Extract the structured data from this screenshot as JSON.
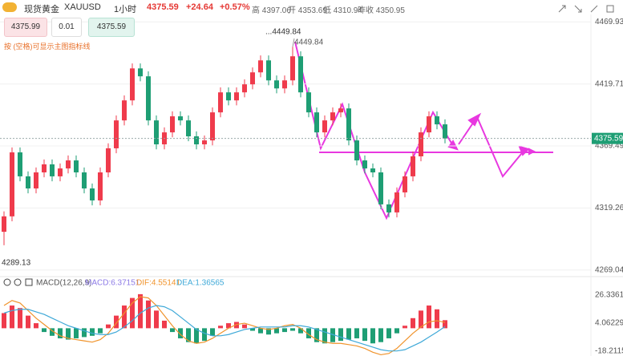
{
  "header": {
    "name": "现货黄金",
    "symbol": "XAUUSD",
    "period": "1小时",
    "price": "4375.59",
    "change": "+24.64",
    "change_pct": "+0.57%",
    "high": "高 4397.06",
    "open": "开 4353.69",
    "low": "低 4310.94",
    "prev_close": "昨收 4350.95"
  },
  "toolbar": {
    "sell": "4375.99",
    "lot": "0.01",
    "buy": "4375.59",
    "hint": "按 (空格)可显示主图指标线"
  },
  "chart_data": [
    {
      "type": "candlestick",
      "categories": [
        null,
        null,
        null,
        null,
        null,
        null,
        null,
        null,
        null,
        null,
        null,
        null,
        null,
        null,
        null,
        null,
        null,
        null,
        null,
        null,
        null,
        null,
        null,
        null,
        null,
        null,
        null,
        null,
        null,
        null,
        null,
        null,
        null,
        null,
        null,
        null,
        null,
        null,
        null,
        null,
        null,
        null,
        null,
        null,
        null,
        null,
        null,
        null,
        null,
        null,
        null,
        null,
        null,
        null,
        null,
        null
      ],
      "open": [
        4300.0,
        4312.5,
        4364.3,
        4344.9,
        4335.1,
        4348.1,
        4354.6,
        4344.9,
        4351.3,
        4357.8,
        4348.1,
        4335.1,
        4325.4,
        4348.1,
        4367.6,
        4390.2,
        4406.4,
        4432.3,
        4425.9,
        4390.2,
        4370.8,
        4380.5,
        4393.5,
        4390.2,
        4377.3,
        4370.8,
        4374.0,
        4396.7,
        4412.9,
        4406.4,
        4412.9,
        4419.4,
        4429.1,
        4438.8,
        4422.6,
        4416.1,
        4422.6,
        4442.1,
        4412.9,
        4396.7,
        4380.5,
        4390.2,
        4396.7,
        4399.9,
        4374.0,
        4357.8,
        4351.3,
        4348.1,
        4322.2,
        4315.7,
        4331.9,
        4344.9,
        4361.1,
        4380.5,
        4393.5,
        4387.0
      ],
      "high": [
        4316.5,
        4368.3,
        4368.3,
        4348.9,
        4352.1,
        4358.6,
        4358.6,
        4355.3,
        4361.8,
        4361.8,
        4352.1,
        4339.1,
        4352.1,
        4371.6,
        4394.2,
        4410.4,
        4436.3,
        4436.3,
        4429.9,
        4394.2,
        4384.5,
        4397.5,
        4397.5,
        4394.2,
        4381.3,
        4378.0,
        4400.7,
        4416.9,
        4416.9,
        4416.9,
        4423.4,
        4433.1,
        4442.8,
        4442.8,
        4426.6,
        4426.6,
        4449.84,
        4446.1,
        4416.9,
        4400.7,
        4394.2,
        4400.7,
        4403.9,
        4403.9,
        4378.0,
        4361.8,
        4355.3,
        4352.1,
        4326.2,
        4335.9,
        4348.9,
        4365.1,
        4384.5,
        4397.5,
        4397.5,
        4391.0
      ],
      "low": [
        4289.13,
        4308.5,
        4340.9,
        4331.1,
        4331.1,
        4344.1,
        4340.9,
        4340.9,
        4347.3,
        4344.1,
        4331.1,
        4321.4,
        4321.4,
        4344.1,
        4363.6,
        4386.2,
        4402.4,
        4421.9,
        4386.2,
        4366.8,
        4366.8,
        4376.5,
        4386.2,
        4373.3,
        4366.8,
        4366.8,
        4370.0,
        4392.7,
        4402.4,
        4402.4,
        4408.9,
        4415.4,
        4425.1,
        4418.6,
        4412.1,
        4412.1,
        4418.6,
        4408.9,
        4392.7,
        4376.5,
        4376.5,
        4386.2,
        4392.7,
        4370.0,
        4353.8,
        4347.3,
        4344.1,
        4318.2,
        4311.7,
        4311.7,
        4327.9,
        4340.9,
        4357.1,
        4376.5,
        4383.0,
        4371.6
      ],
      "close": [
        4312.5,
        4364.3,
        4344.9,
        4335.1,
        4348.1,
        4354.6,
        4344.9,
        4351.3,
        4357.8,
        4348.1,
        4335.1,
        4325.4,
        4348.1,
        4367.6,
        4390.2,
        4406.4,
        4432.3,
        4425.9,
        4390.2,
        4370.8,
        4380.5,
        4393.5,
        4390.2,
        4377.3,
        4370.8,
        4374.0,
        4396.7,
        4412.9,
        4406.4,
        4412.9,
        4419.4,
        4429.1,
        4438.8,
        4422.6,
        4416.1,
        4422.6,
        4442.1,
        4412.9,
        4396.7,
        4380.5,
        4390.2,
        4396.7,
        4399.9,
        4374.0,
        4357.8,
        4351.3,
        4348.1,
        4322.2,
        4315.7,
        4331.9,
        4344.9,
        4361.1,
        4380.5,
        4393.5,
        4387.0,
        4375.59
      ],
      "up_color": "#ef3b4c",
      "down_color": "#1e9e74",
      "ylim": [
        4265,
        4476
      ],
      "yticks": [
        4469.93,
        4419.71,
        4369.49,
        4319.26,
        4269.04
      ],
      "last_price": 4375.59,
      "last_price_color": "#1e9e74",
      "max_label": "4449.84",
      "max_label_top": "...4449.84",
      "min_label": "4289.13",
      "grid": true
    },
    {
      "type": "macd",
      "legend": [
        {
          "text": "MACD(12,26,9)",
          "color": "#555555"
        },
        {
          "text": "MACD:6.37151",
          "color": "#8c7ae6"
        },
        {
          "text": "DIF:4.55141",
          "color": "#f0932b"
        },
        {
          "text": "DEA:1.36565",
          "color": "#3fa9d8"
        }
      ],
      "series": [
        {
          "values": [
            12,
            18,
            16,
            10,
            4,
            -3,
            -6,
            -8,
            -9,
            -8,
            -7,
            -6,
            -4,
            3,
            10,
            18,
            24,
            27,
            22,
            14,
            6,
            -3,
            -8,
            -11,
            -12,
            -10,
            -6,
            2,
            4,
            5,
            3,
            -2,
            -4,
            -5,
            -4,
            -3,
            -2,
            -4,
            -8,
            -11,
            -12,
            -11,
            -10,
            -9,
            -8,
            -10,
            -12,
            -11,
            -8,
            -4,
            2,
            8,
            14,
            18,
            15,
            6.37151
          ],
          "up_color": "#ef3b4c",
          "down_color": "#1e9e74"
        },
        {
          "values": [
            18,
            22,
            20,
            14,
            8,
            3,
            -2,
            -6,
            -8,
            -9,
            -10,
            -11,
            -9,
            -4,
            4,
            12,
            20,
            25,
            24,
            18,
            10,
            2,
            -5,
            -10,
            -12,
            -11,
            -8,
            -4,
            0,
            3,
            4,
            2,
            0,
            -1,
            0,
            2,
            3,
            0,
            -5,
            -9,
            -11,
            -12,
            -12,
            -13,
            -14,
            -16,
            -19,
            -21,
            -20,
            -16,
            -10,
            -4,
            1,
            5,
            6,
            4.55141
          ],
          "color": "#f0932b"
        },
        {
          "values": [
            12,
            14,
            15,
            15,
            13,
            11,
            8,
            5,
            2,
            0,
            -2,
            -4,
            -5,
            -5,
            -3,
            1,
            6,
            12,
            16,
            18,
            17,
            14,
            9,
            4,
            -1,
            -4,
            -6,
            -6,
            -5,
            -3,
            -1,
            0,
            1,
            1,
            1,
            1,
            2,
            2,
            1,
            -1,
            -3,
            -5,
            -7,
            -9,
            -11,
            -13,
            -15,
            -17,
            -18,
            -18,
            -17,
            -14,
            -11,
            -7,
            -3,
            1.36565
          ],
          "color": "#3fa9d8"
        }
      ],
      "ylim": [
        -22,
        39
      ],
      "yticks": [
        {
          "value": 26.3361,
          "label": "26.33610"
        },
        4.06229,
        -18.21152
      ]
    }
  ]
}
